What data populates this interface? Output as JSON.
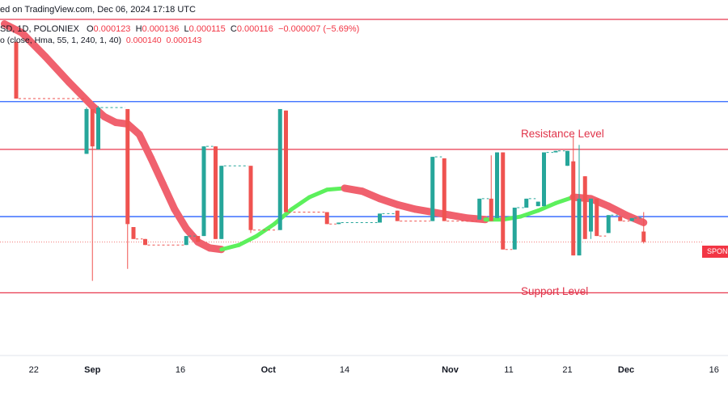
{
  "header": {
    "published": "ed on TradingView.com, Dec 06, 2024 17:18 UTC",
    "symbol_line": "SD, 1D, POLONIEX",
    "ohlc": {
      "open_label": "O",
      "open": "0.000123",
      "high_label": "H",
      "high": "0.000136",
      "low_label": "L",
      "low": "0.000115",
      "close_label": "C",
      "close": "0.000116",
      "change": "−0.000007 (−5.69%)"
    },
    "indicator_line": "o (close, Hma, 55, 1, 240, 1, 40)",
    "indicator_v1": "0.000140",
    "indicator_v2": "0.000143"
  },
  "price_badge": "SPON",
  "annotations": {
    "resistance": "Resistance Level",
    "support": "Support Level"
  },
  "colors": {
    "up": "#26a69a",
    "down": "#ef5350",
    "red_line": "#e8384f",
    "blue_line": "#2962ff",
    "ma_down": "#f0616e",
    "ma_up": "#5cf05c",
    "axis_text": "#131722"
  },
  "chart_data": {
    "type": "candlestick",
    "x_ticks": [
      {
        "label": "22",
        "day": -9
      },
      {
        "label": "Sep",
        "day": 1
      },
      {
        "label": "16",
        "day": 16
      },
      {
        "label": "Oct",
        "day": 31
      },
      {
        "label": "14",
        "day": 44
      },
      {
        "label": "Nov",
        "day": 62
      },
      {
        "label": "11",
        "day": 72
      },
      {
        "label": "21",
        "day": 82
      },
      {
        "label": "Dec",
        "day": 92
      },
      {
        "label": "16",
        "day": 107
      }
    ],
    "y_range": [
      4e-05,
      0.000278
    ],
    "levels": [
      {
        "name": "resistance-top",
        "value": 0.000265,
        "color": "#e8384f"
      },
      {
        "name": "blue-upper",
        "value": 0.00021,
        "color": "#2962ff"
      },
      {
        "name": "resistance",
        "value": 0.000178,
        "color": "#e8384f"
      },
      {
        "name": "blue-lower",
        "value": 0.000133,
        "color": "#2962ff"
      },
      {
        "name": "support",
        "value": 8.2e-05,
        "color": "#e8384f"
      }
    ],
    "last_price": 0.000116,
    "candles": [
      {
        "d": -12,
        "o": 0.00025,
        "h": 0.00025,
        "l": 0.000213,
        "c": 0.000212
      },
      {
        "d": 0,
        "o": 0.000175,
        "h": 0.000206,
        "l": 0.000175,
        "c": 0.000205
      },
      {
        "d": 1,
        "o": 0.000205,
        "h": 0.000205,
        "l": 9e-05,
        "c": 0.00018
      },
      {
        "d": 2,
        "o": 0.000178,
        "h": 0.000207,
        "l": 0.000178,
        "c": 0.000206
      },
      {
        "d": 7,
        "o": 0.000205,
        "h": 0.000205,
        "l": 9.8e-05,
        "c": 0.000128
      },
      {
        "d": 8,
        "o": 0.000126,
        "h": 0.000126,
        "l": 0.000118,
        "c": 0.000118
      },
      {
        "d": 10,
        "o": 0.000118,
        "h": 0.000118,
        "l": 0.000114,
        "c": 0.000114
      },
      {
        "d": 17,
        "o": 0.000114,
        "h": 0.00012,
        "l": 0.000114,
        "c": 0.00012
      },
      {
        "d": 19,
        "o": 0.00012,
        "h": 0.00012,
        "l": 0.000116,
        "c": 0.000116
      },
      {
        "d": 20,
        "o": 0.00012,
        "h": 0.00018,
        "l": 0.00012,
        "c": 0.00018
      },
      {
        "d": 22,
        "o": 0.00018,
        "h": 0.00018,
        "l": 0.000118,
        "c": 0.000118
      },
      {
        "d": 23,
        "o": 0.000118,
        "h": 0.000167,
        "l": 0.000118,
        "c": 0.000167
      },
      {
        "d": 28,
        "o": 0.000167,
        "h": 0.000167,
        "l": 0.000122,
        "c": 0.000124
      },
      {
        "d": 33,
        "o": 0.000124,
        "h": 0.000205,
        "l": 0.000124,
        "c": 0.000205
      },
      {
        "d": 34,
        "o": 0.000204,
        "h": 0.000204,
        "l": 0.000136,
        "c": 0.000136
      },
      {
        "d": 41,
        "o": 0.000136,
        "h": 0.000136,
        "l": 0.000128,
        "c": 0.000128
      },
      {
        "d": 43,
        "o": 0.000128,
        "h": 0.000129,
        "l": 0.000128,
        "c": 0.000129
      },
      {
        "d": 50,
        "o": 0.000129,
        "h": 0.000135,
        "l": 0.000129,
        "c": 0.000135
      },
      {
        "d": 53,
        "o": 0.000137,
        "h": 0.000137,
        "l": 0.00013,
        "c": 0.00013
      },
      {
        "d": 59,
        "o": 0.00013,
        "h": 0.000173,
        "l": 0.00013,
        "c": 0.000173
      },
      {
        "d": 61,
        "o": 0.000172,
        "h": 0.000172,
        "l": 0.00013,
        "c": 0.00013
      },
      {
        "d": 67,
        "o": 0.000131,
        "h": 0.000145,
        "l": 0.000131,
        "c": 0.000145
      },
      {
        "d": 69,
        "o": 0.000145,
        "h": 0.000174,
        "l": 0.00013,
        "c": 0.00013
      },
      {
        "d": 70,
        "o": 0.000132,
        "h": 0.000176,
        "l": 0.000132,
        "c": 0.000176
      },
      {
        "d": 71,
        "o": 0.000176,
        "h": 0.000176,
        "l": 0.000111,
        "c": 0.000111
      },
      {
        "d": 73,
        "o": 0.000111,
        "h": 0.000139,
        "l": 0.000111,
        "c": 0.000139
      },
      {
        "d": 75,
        "o": 0.000139,
        "h": 0.000145,
        "l": 0.000139,
        "c": 0.000145
      },
      {
        "d": 77,
        "o": 0.00014,
        "h": 0.000143,
        "l": 0.00014,
        "c": 0.000143
      },
      {
        "d": 78,
        "o": 0.00014,
        "h": 0.000176,
        "l": 0.00014,
        "c": 0.000176
      },
      {
        "d": 80,
        "o": 0.000176,
        "h": 0.000177,
        "l": 0.000176,
        "c": 0.000177
      },
      {
        "d": 82,
        "o": 0.000167,
        "h": 0.000177,
        "l": 0.000167,
        "c": 0.000177
      },
      {
        "d": 83,
        "o": 0.00017,
        "h": 0.000187,
        "l": 0.000107,
        "c": 0.000107
      },
      {
        "d": 84,
        "o": 0.000107,
        "h": 0.000181,
        "l": 0.000107,
        "c": 0.000145
      },
      {
        "d": 85,
        "o": 0.00016,
        "h": 0.00016,
        "l": 0.000118,
        "c": 0.000118
      },
      {
        "d": 86,
        "o": 0.000123,
        "h": 0.000145,
        "l": 0.000118,
        "c": 0.000145
      },
      {
        "d": 87,
        "o": 0.000145,
        "h": 0.000145,
        "l": 0.00012,
        "c": 0.00012
      },
      {
        "d": 89,
        "o": 0.000122,
        "h": 0.000134,
        "l": 0.000122,
        "c": 0.000134
      },
      {
        "d": 91,
        "o": 0.000133,
        "h": 0.000133,
        "l": 0.00013,
        "c": 0.00013
      },
      {
        "d": 93,
        "o": 0.00013,
        "h": 0.000132,
        "l": 0.00013,
        "c": 0.000132
      },
      {
        "d": 95,
        "o": 0.000123,
        "h": 0.000136,
        "l": 0.000115,
        "c": 0.000116
      }
    ],
    "ma": [
      {
        "d": -14,
        "v": 0.000262
      },
      {
        "d": -11,
        "v": 0.000256
      },
      {
        "d": -7,
        "v": 0.00024
      },
      {
        "d": -3,
        "v": 0.000223
      },
      {
        "d": 1,
        "v": 0.000207
      },
      {
        "d": 3,
        "v": 0.0002
      },
      {
        "d": 5,
        "v": 0.000196
      },
      {
        "d": 7,
        "v": 0.000195
      },
      {
        "d": 9,
        "v": 0.000188
      },
      {
        "d": 11,
        "v": 0.000172
      },
      {
        "d": 13,
        "v": 0.000155
      },
      {
        "d": 15,
        "v": 0.000138
      },
      {
        "d": 17,
        "v": 0.000125
      },
      {
        "d": 19,
        "v": 0.000116
      },
      {
        "d": 21,
        "v": 0.000112
      },
      {
        "d": 23,
        "v": 0.000111
      },
      {
        "d": 26,
        "v": 0.000114
      },
      {
        "d": 29,
        "v": 0.00012
      },
      {
        "d": 32,
        "v": 0.000128
      },
      {
        "d": 35,
        "v": 0.000138
      },
      {
        "d": 38,
        "v": 0.000146
      },
      {
        "d": 41,
        "v": 0.000151
      },
      {
        "d": 44,
        "v": 0.000152
      },
      {
        "d": 47,
        "v": 0.00015
      },
      {
        "d": 50,
        "v": 0.000145
      },
      {
        "d": 53,
        "v": 0.000141
      },
      {
        "d": 56,
        "v": 0.000138
      },
      {
        "d": 59,
        "v": 0.000136
      },
      {
        "d": 62,
        "v": 0.000134
      },
      {
        "d": 65,
        "v": 0.000132
      },
      {
        "d": 68,
        "v": 0.000131
      },
      {
        "d": 71,
        "v": 0.000131
      },
      {
        "d": 74,
        "v": 0.000133
      },
      {
        "d": 77,
        "v": 0.000137
      },
      {
        "d": 80,
        "v": 0.000142
      },
      {
        "d": 83,
        "v": 0.000146
      },
      {
        "d": 86,
        "v": 0.000145
      },
      {
        "d": 89,
        "v": 0.00014
      },
      {
        "d": 92,
        "v": 0.000134
      },
      {
        "d": 95,
        "v": 0.000129
      }
    ]
  }
}
